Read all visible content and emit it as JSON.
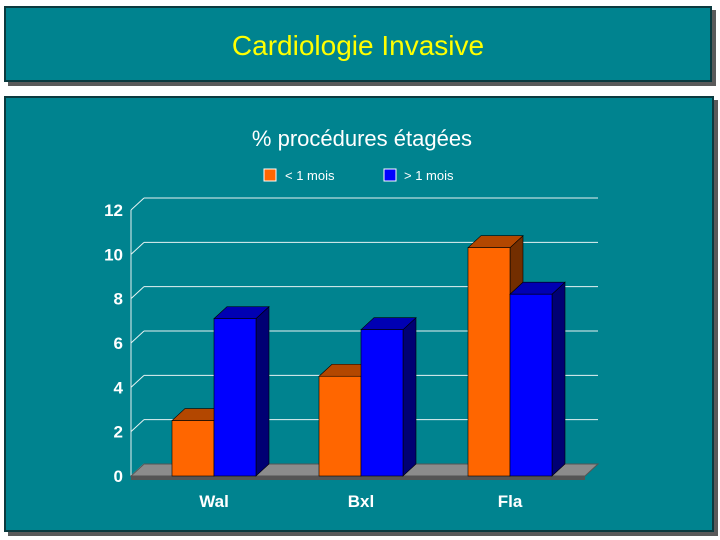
{
  "slide": {
    "title": "Cardiologie Invasive"
  },
  "colors": {
    "panel": "#00838f",
    "title_text": "#ffff00",
    "series1": "#ff6600",
    "series2": "#0000ff",
    "floor": "#8c8c8c"
  },
  "chart_data": {
    "type": "bar",
    "title": "% procédures étagées",
    "categories": [
      "Wal",
      "Bxl",
      "Fla"
    ],
    "series": [
      {
        "name": "< 1 mois",
        "values": [
          2.5,
          4.5,
          10.3
        ]
      },
      {
        "name": "> 1 mois",
        "values": [
          7.1,
          6.6,
          8.2
        ]
      }
    ],
    "yticks": [
      "0",
      "2",
      "4",
      "6",
      "8",
      "10",
      "12"
    ],
    "ylim": [
      0,
      12
    ],
    "xlabel": "",
    "ylabel": "",
    "grid": true,
    "legend": "top-center"
  }
}
